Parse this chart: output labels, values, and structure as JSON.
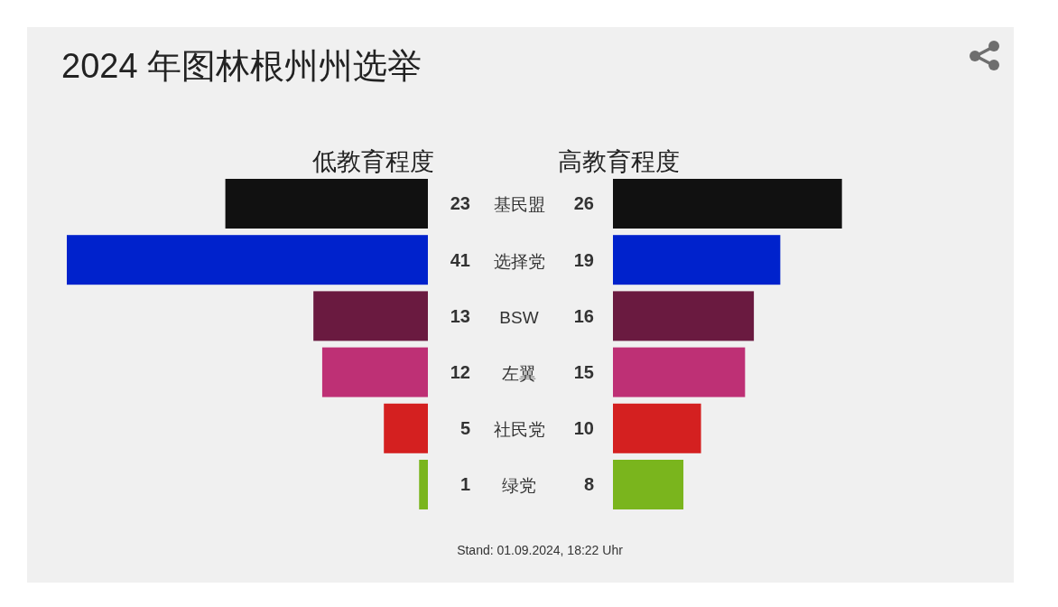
{
  "chart_data": [
    {
      "type": "bar",
      "orientation": "horizontal",
      "title": "2024 年图林根州州选举",
      "categories": [
        "基民盟",
        "选择党",
        "BSW",
        "左翼",
        "社民党",
        "绿党"
      ],
      "series": [
        {
          "name": "低教育程度",
          "colors": [
            "#111111",
            "#0022cc",
            "#6a1a40",
            "#be3075",
            "#d42020",
            "#7ab51d"
          ],
          "values": [
            23,
            41,
            13,
            12,
            5,
            1
          ]
        }
      ],
      "data_labels": true,
      "annotations": [
        "Stand: 01.09.2024, 18:22 Uhr"
      ]
    },
    {
      "type": "bar",
      "orientation": "horizontal",
      "categories": [
        null,
        null,
        null,
        null,
        null,
        null
      ],
      "series": [
        {
          "name": "高教育程度",
          "colors": [
            "#111111",
            "#0022cc",
            "#6a1a40",
            "#be3075",
            "#d42020",
            "#7ab51d"
          ],
          "values": [
            26,
            19,
            16,
            15,
            10,
            8
          ]
        }
      ],
      "data_labels": true
    }
  ]
}
